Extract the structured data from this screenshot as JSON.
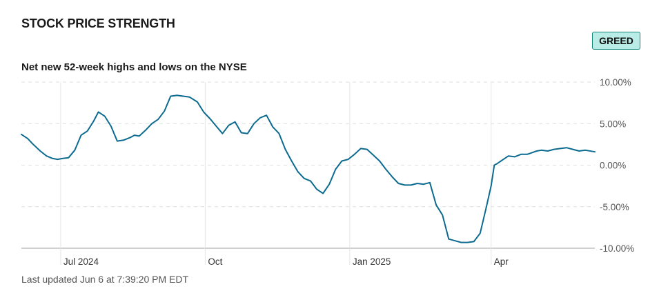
{
  "header": {
    "title": "STOCK PRICE STRENGTH",
    "badge": "GREED",
    "subtitle": "Net new 52-week highs and lows on the NYSE"
  },
  "footer": {
    "updated": "Last updated Jun 6 at 7:39:20 PM EDT"
  },
  "colors": {
    "line": "#0b6a8f",
    "badge_bg": "#b9ece6",
    "badge_border": "#12857a",
    "grid": "#dddddd",
    "axis": "#bfbfbf"
  },
  "chart_data": {
    "type": "line",
    "title": "STOCK PRICE STRENGTH",
    "subtitle": "Net new 52-week highs and lows on the NYSE",
    "xlabel": "",
    "ylabel": "",
    "ylim": [
      -10,
      10
    ],
    "xlim": [
      "2024-06-06",
      "2025-06-06"
    ],
    "y_ticks": [
      10,
      5,
      0,
      -5,
      -10
    ],
    "y_tick_labels": [
      "10.00%",
      "5.00%",
      "0.00%",
      "-5.00%",
      "-10.00%"
    ],
    "x_ticks": [
      {
        "date": "2024-07-01",
        "label": "Jul 2024"
      },
      {
        "date": "2024-10-01",
        "label": "Oct"
      },
      {
        "date": "2025-01-01",
        "label": "Jan 2025"
      },
      {
        "date": "2025-04-01",
        "label": "Apr"
      }
    ],
    "grid": true,
    "series": [
      {
        "x": [
          "2024-06-06",
          "2024-06-10",
          "2024-06-13",
          "2024-06-18",
          "2024-06-22",
          "2024-06-26",
          "2024-06-29",
          "2024-07-02",
          "2024-07-06",
          "2024-07-10",
          "2024-07-14",
          "2024-07-18",
          "2024-07-22",
          "2024-07-25",
          "2024-07-29",
          "2024-08-02",
          "2024-08-06",
          "2024-08-10",
          "2024-08-14",
          "2024-08-17",
          "2024-08-20",
          "2024-08-24",
          "2024-08-28",
          "2024-09-01",
          "2024-09-05",
          "2024-09-09",
          "2024-09-13",
          "2024-09-17",
          "2024-09-21",
          "2024-09-26",
          "2024-09-30",
          "2024-10-04",
          "2024-10-08",
          "2024-10-12",
          "2024-10-16",
          "2024-10-20",
          "2024-10-24",
          "2024-10-28",
          "2024-11-01",
          "2024-11-05",
          "2024-11-09",
          "2024-11-13",
          "2024-11-17",
          "2024-11-21",
          "2024-11-25",
          "2024-11-29",
          "2024-12-03",
          "2024-12-07",
          "2024-12-11",
          "2024-12-15",
          "2024-12-19",
          "2024-12-23",
          "2024-12-27",
          "2024-12-31",
          "2025-01-04",
          "2025-01-08",
          "2025-01-12",
          "2025-01-16",
          "2025-01-20",
          "2025-01-24",
          "2025-01-28",
          "2025-02-01",
          "2025-02-05",
          "2025-02-09",
          "2025-02-13",
          "2025-02-17",
          "2025-02-21",
          "2025-02-25",
          "2025-03-01",
          "2025-03-05",
          "2025-03-09",
          "2025-03-13",
          "2025-03-17",
          "2025-03-21",
          "2025-03-25",
          "2025-03-29",
          "2025-04-01",
          "2025-04-03",
          "2025-04-05",
          "2025-04-08",
          "2025-04-12",
          "2025-04-16",
          "2025-04-20",
          "2025-04-24",
          "2025-04-27",
          "2025-04-30",
          "2025-05-03",
          "2025-05-07",
          "2025-05-11",
          "2025-05-15",
          "2025-05-19",
          "2025-05-23",
          "2025-05-27",
          "2025-05-31",
          "2025-06-06"
        ],
        "values": [
          3.7,
          3.2,
          2.6,
          1.7,
          1.1,
          0.8,
          0.7,
          0.8,
          0.9,
          1.8,
          3.6,
          4.1,
          5.3,
          6.4,
          5.9,
          4.7,
          2.9,
          3.0,
          3.3,
          3.6,
          3.5,
          4.2,
          5.0,
          5.5,
          6.5,
          8.3,
          8.4,
          8.3,
          8.2,
          7.6,
          6.4,
          5.6,
          4.7,
          3.8,
          4.8,
          5.2,
          3.9,
          3.8,
          5.0,
          5.7,
          6.0,
          4.6,
          3.8,
          1.9,
          0.5,
          -0.8,
          -1.6,
          -1.9,
          -2.9,
          -3.4,
          -2.3,
          -0.5,
          0.5,
          0.7,
          1.3,
          2.0,
          1.9,
          1.2,
          0.5,
          -0.5,
          -1.4,
          -2.2,
          -2.4,
          -2.4,
          -2.2,
          -2.3,
          -2.1,
          -4.8,
          -6.0,
          -8.9,
          -9.1,
          -9.3,
          -9.3,
          -9.2,
          -8.2,
          -5.0,
          -2.5,
          0.0,
          0.2,
          0.6,
          1.1,
          1.0,
          1.3,
          1.3,
          1.5,
          1.7,
          1.8,
          1.7,
          1.9,
          2.0,
          2.1,
          1.9,
          1.7,
          1.8,
          1.6
        ]
      }
    ]
  }
}
